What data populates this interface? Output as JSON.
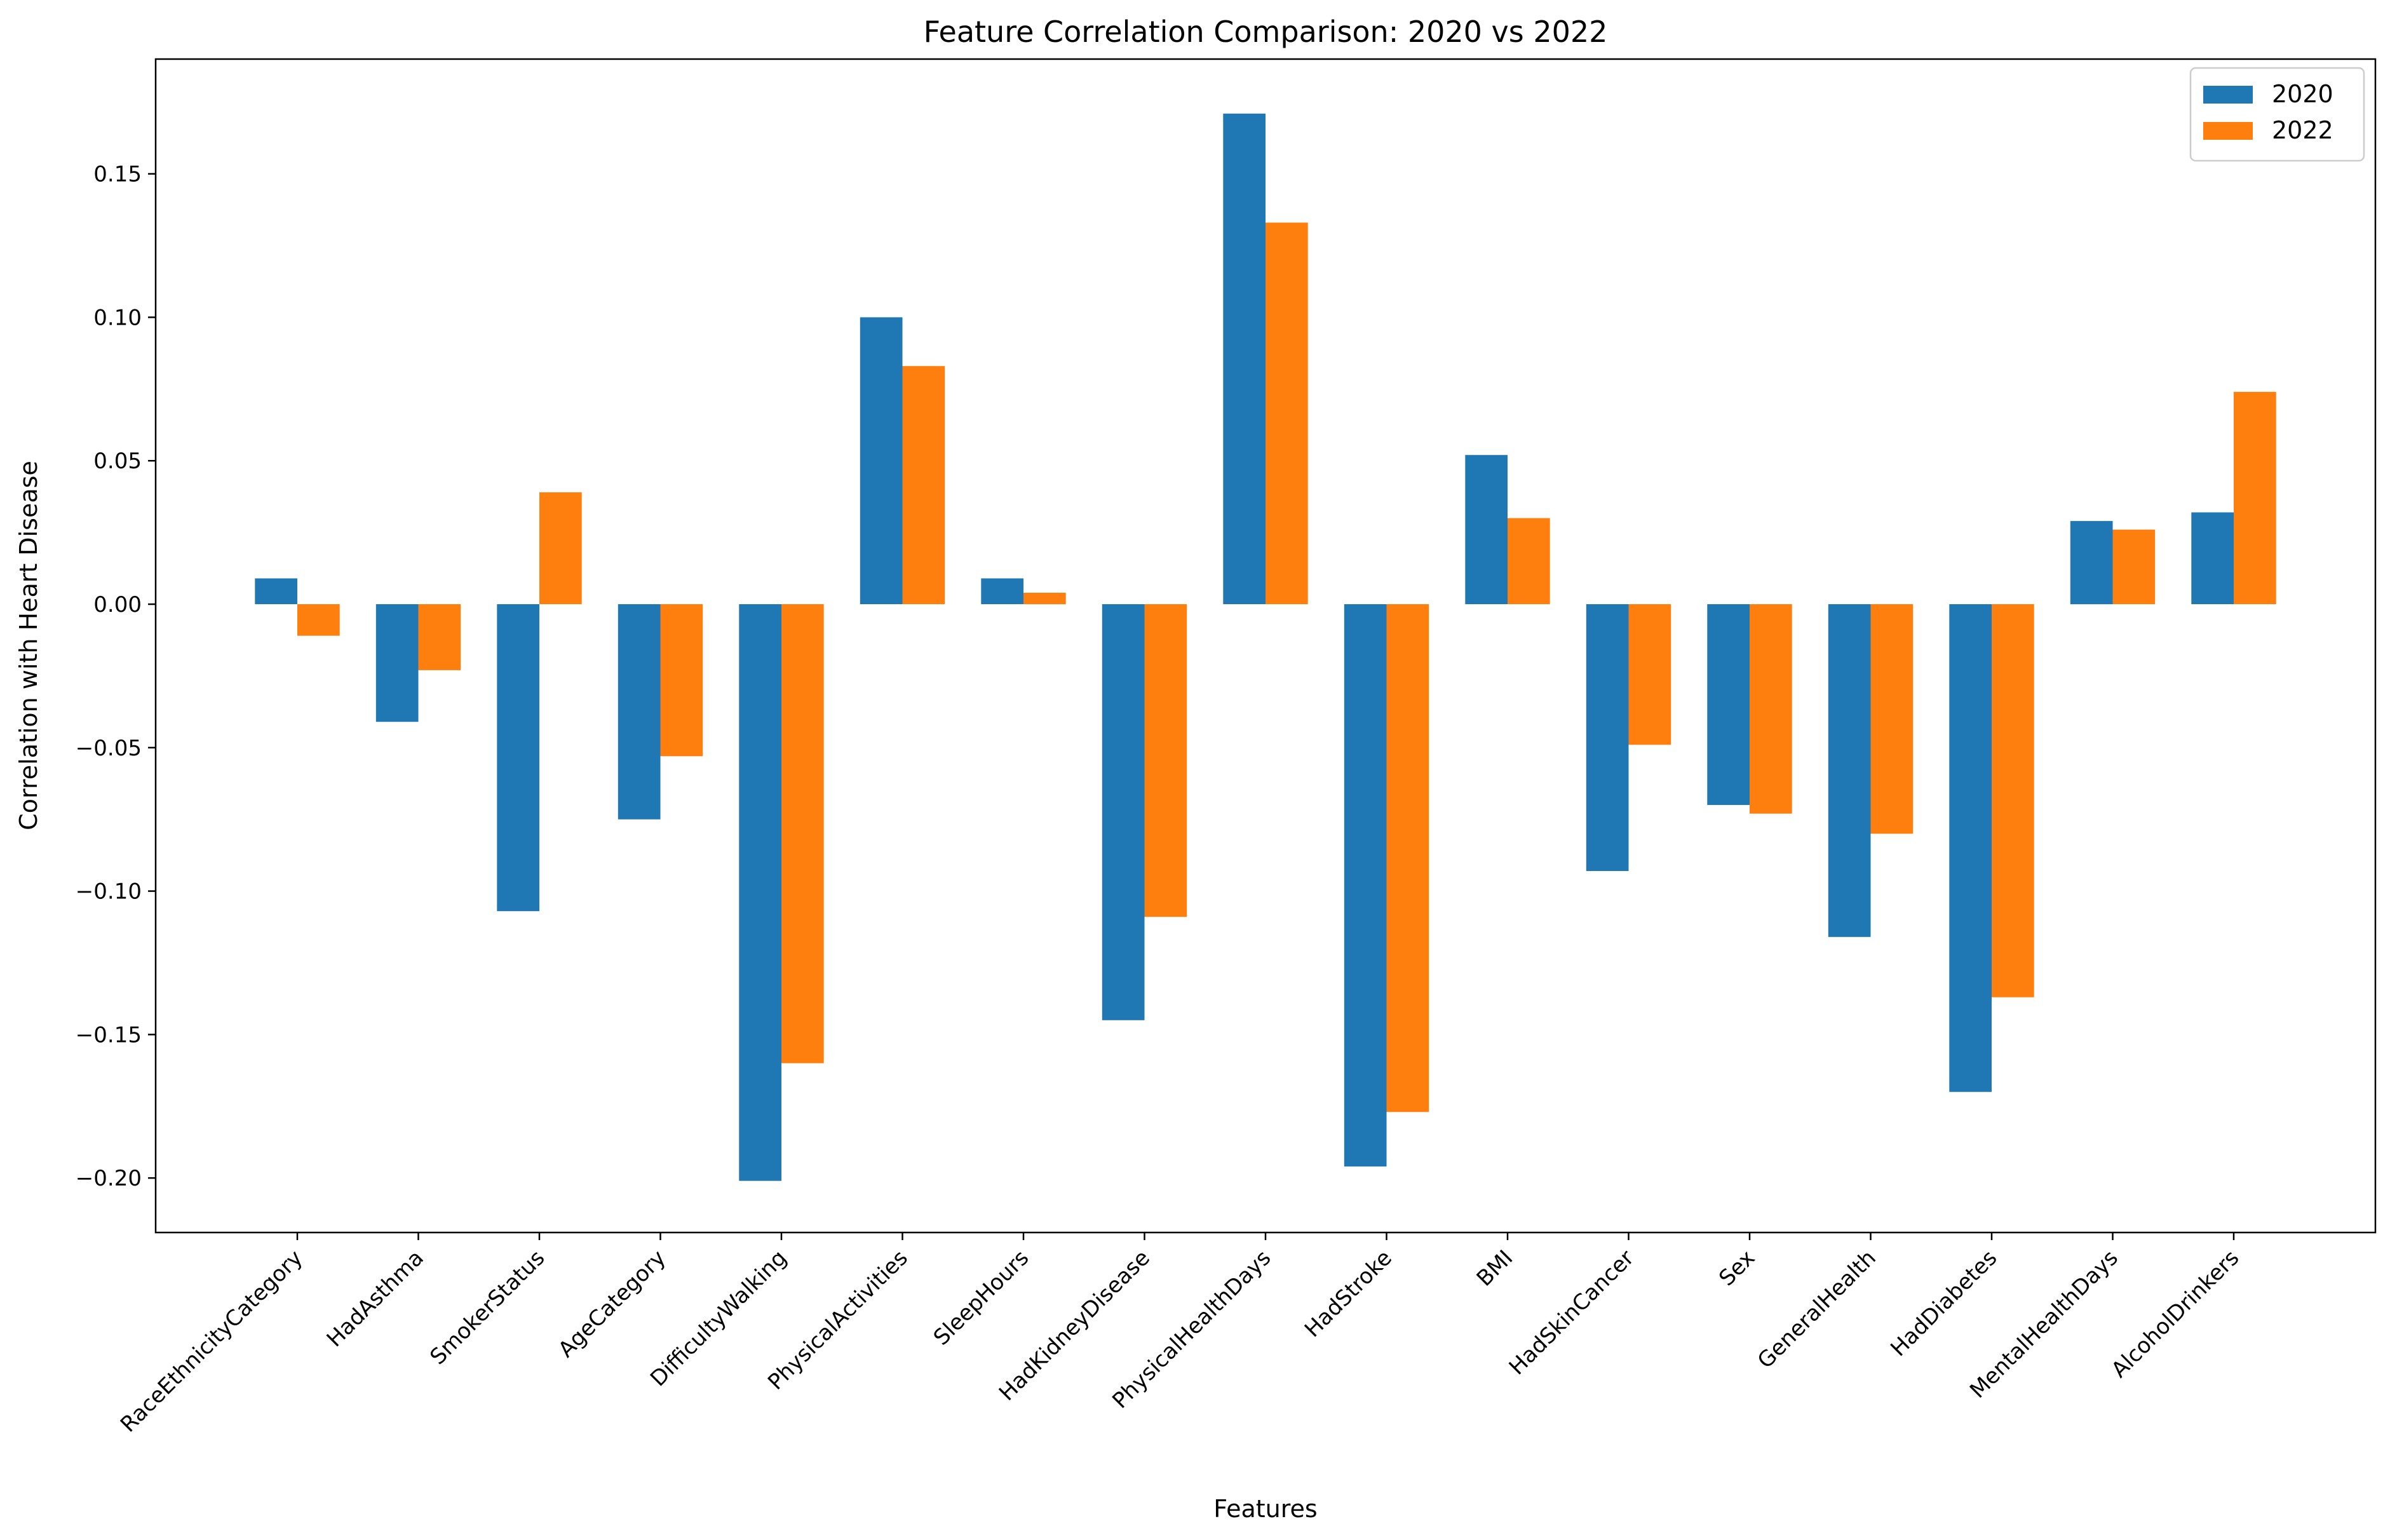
{
  "chart_data": {
    "type": "bar",
    "title": "Feature Correlation Comparison: 2020 vs 2022",
    "xlabel": "Features",
    "ylabel": "Correlation with Heart Disease",
    "categories": [
      "RaceEthnicityCategory",
      "HadAsthma",
      "SmokerStatus",
      "AgeCategory",
      "DifficultyWalking",
      "PhysicalActivities",
      "SleepHours",
      "HadKidneyDisease",
      "PhysicalHealthDays",
      "HadStroke",
      "BMI",
      "HadSkinCancer",
      "Sex",
      "GeneralHealth",
      "HadDiabetes",
      "MentalHealthDays",
      "AlcoholDrinkers"
    ],
    "series": [
      {
        "name": "2020",
        "color": "#1f77b4",
        "values": [
          0.009,
          -0.041,
          -0.107,
          -0.075,
          -0.201,
          0.1,
          0.009,
          -0.145,
          0.171,
          -0.196,
          0.052,
          -0.093,
          -0.07,
          -0.116,
          -0.17,
          0.029,
          0.032
        ]
      },
      {
        "name": "2022",
        "color": "#ff7f0e",
        "values": [
          -0.011,
          -0.023,
          0.039,
          -0.053,
          -0.16,
          0.083,
          0.004,
          -0.109,
          0.133,
          -0.177,
          0.03,
          -0.049,
          -0.073,
          -0.08,
          -0.137,
          0.026,
          0.074
        ]
      }
    ],
    "ylim": [
      -0.219,
      0.19
    ],
    "yticks": [
      -0.2,
      -0.15,
      -0.1,
      -0.05,
      0.0,
      0.05,
      0.1,
      0.15
    ],
    "ytick_labels": [
      "−0.20",
      "−0.15",
      "−0.10",
      "−0.05",
      "0.00",
      "0.05",
      "0.10",
      "0.15"
    ],
    "legend_position": "top-right",
    "grid": false
  }
}
